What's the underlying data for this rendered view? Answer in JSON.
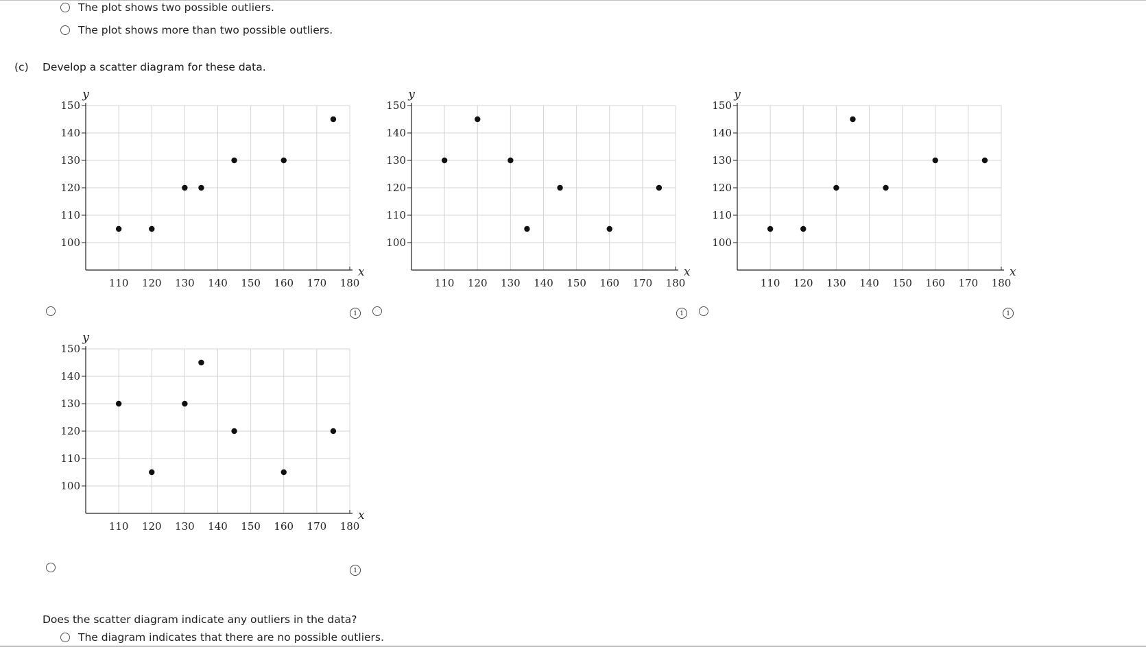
{
  "part_b_options": [
    {
      "label": "The plot shows two possible outliers."
    },
    {
      "label": "The plot shows more than two possible outliers."
    }
  ],
  "part_c": {
    "label": "(c)",
    "text": "Develop a scatter diagram for these data."
  },
  "info_icon_glyph": "i",
  "question": {
    "text": "Does the scatter diagram indicate any outliers in the data?"
  },
  "part_d_options": [
    {
      "label": "The diagram indicates that there are no possible outliers."
    }
  ],
  "chart_data": [
    {
      "type": "scatter",
      "xlabel": "x",
      "ylabel": "y",
      "xlim": [
        100,
        180
      ],
      "ylim": [
        90,
        150
      ],
      "xticks": [
        110,
        120,
        130,
        140,
        150,
        160,
        170,
        180
      ],
      "yticks": [
        100,
        110,
        120,
        130,
        140,
        150
      ],
      "grid": true,
      "x": [
        110,
        120,
        130,
        135,
        145,
        160,
        175
      ],
      "y": [
        105,
        105,
        120,
        120,
        130,
        130,
        145
      ]
    },
    {
      "type": "scatter",
      "xlabel": "x",
      "ylabel": "y",
      "xlim": [
        100,
        180
      ],
      "ylim": [
        90,
        150
      ],
      "xticks": [
        110,
        120,
        130,
        140,
        150,
        160,
        170,
        180
      ],
      "yticks": [
        100,
        110,
        120,
        130,
        140,
        150
      ],
      "grid": true,
      "x": [
        110,
        120,
        130,
        135,
        145,
        160,
        175
      ],
      "y": [
        130,
        145,
        130,
        105,
        120,
        105,
        120
      ]
    },
    {
      "type": "scatter",
      "xlabel": "x",
      "ylabel": "y",
      "xlim": [
        100,
        180
      ],
      "ylim": [
        90,
        150
      ],
      "xticks": [
        110,
        120,
        130,
        140,
        150,
        160,
        170,
        180
      ],
      "yticks": [
        100,
        110,
        120,
        130,
        140,
        150
      ],
      "grid": true,
      "x": [
        110,
        120,
        130,
        135,
        145,
        160,
        175
      ],
      "y": [
        105,
        105,
        120,
        145,
        120,
        130,
        130
      ]
    },
    {
      "type": "scatter",
      "xlabel": "x",
      "ylabel": "y",
      "xlim": [
        100,
        180
      ],
      "ylim": [
        90,
        150
      ],
      "xticks": [
        110,
        120,
        130,
        140,
        150,
        160,
        170,
        180
      ],
      "yticks": [
        100,
        110,
        120,
        130,
        140,
        150
      ],
      "grid": true,
      "x": [
        110,
        120,
        130,
        135,
        145,
        160,
        175
      ],
      "y": [
        130,
        105,
        130,
        145,
        120,
        105,
        120
      ]
    }
  ]
}
